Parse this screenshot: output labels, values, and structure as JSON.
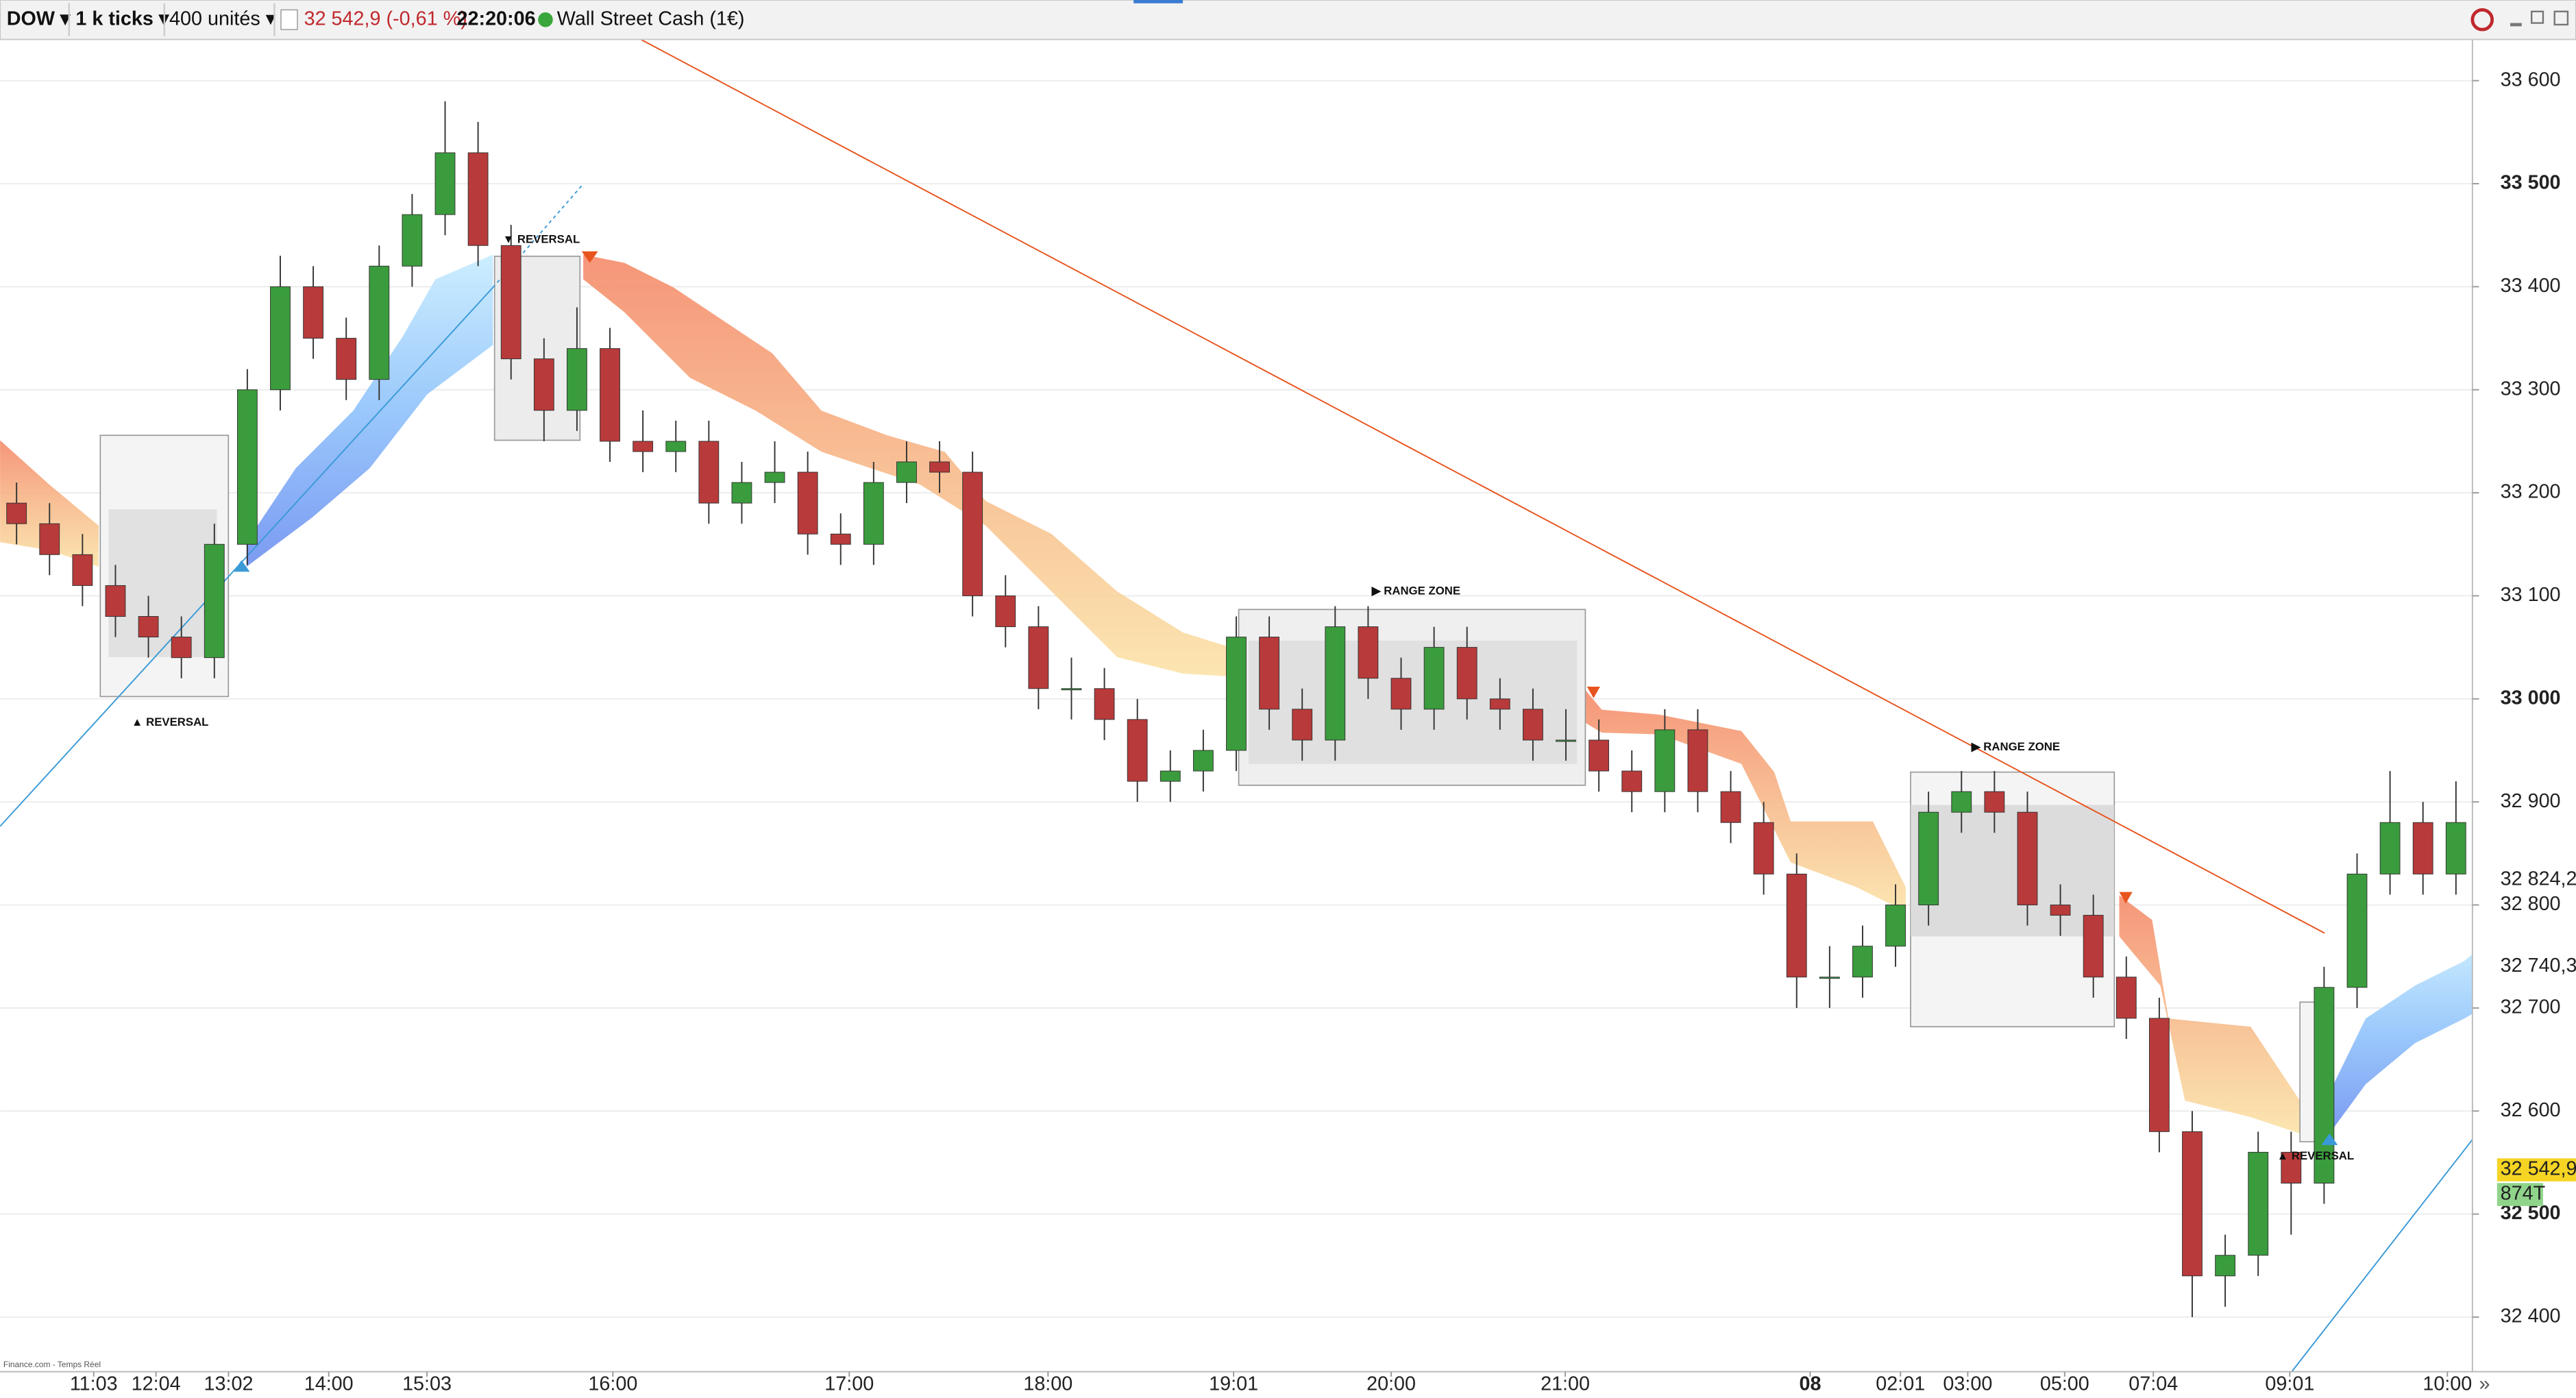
{
  "toolbar": {
    "symbol": "DOW ▾",
    "timeframe": "1 k ticks ▾",
    "units": "400 unités ▾",
    "quote": "32 542,9 (-0,61 %)",
    "time": "22:20:06",
    "instrument": "Wall Street Cash (1€)"
  },
  "footer": {
    "source": "Finance.com - Temps Réel",
    "more": "»"
  },
  "chart_data": {
    "type": "candlestick",
    "up_color": "#3a9c3c",
    "down_color": "#b83a3a",
    "grid": true,
    "annotations": [
      "▼ REVERSAL",
      "▲ REVERSAL",
      "▶ RANGE ZONE",
      "▶ RANGE ZONE",
      "▲ REVERSAL"
    ],
    "xlim": [
      0,
      75
    ],
    "xticks": [
      {
        "value": 2.84,
        "label": "11:03"
      },
      {
        "value": 4.73,
        "label": "12:04"
      },
      {
        "value": 6.93,
        "label": "13:02"
      },
      {
        "value": 9.97,
        "label": "14:00"
      },
      {
        "value": 12.95,
        "label": "15:03"
      },
      {
        "value": 18.59,
        "label": "16:00"
      },
      {
        "value": 25.76,
        "label": "17:00"
      },
      {
        "value": 31.79,
        "label": "18:00"
      },
      {
        "value": 37.42,
        "label": "19:01"
      },
      {
        "value": 42.2,
        "label": "20:00"
      },
      {
        "value": 47.48,
        "label": "21:00"
      },
      {
        "value": 54.91,
        "label": "08"
      },
      {
        "value": 57.65,
        "label": "02:01"
      },
      {
        "value": 59.69,
        "label": "03:00"
      },
      {
        "value": 62.63,
        "label": "05:00"
      },
      {
        "value": 65.32,
        "label": "07:04"
      },
      {
        "value": 69.46,
        "label": "09:01"
      },
      {
        "value": 74.24,
        "label": "10:00"
      }
    ],
    "ylim": [
      32347,
      33640
    ],
    "yticks": [
      {
        "value": 32400,
        "label": "32 400"
      },
      {
        "value": 32500,
        "label": "32 500"
      },
      {
        "value": 32600,
        "label": "32 600"
      },
      {
        "value": 32700,
        "label": "32 700"
      },
      {
        "value": 32800,
        "label": "32 800"
      },
      {
        "value": 32900,
        "label": "32 900"
      },
      {
        "value": 33000,
        "label": "33 000"
      },
      {
        "value": 33100,
        "label": "33 100"
      },
      {
        "value": 33200,
        "label": "33 200"
      },
      {
        "value": 33300,
        "label": "33 300"
      },
      {
        "value": 33400,
        "label": "33 400"
      },
      {
        "value": 33500,
        "label": "33 500"
      },
      {
        "value": 33600,
        "label": "33 600"
      }
    ],
    "price_markers": [
      {
        "value": 32824.2,
        "label": "32 824,2",
        "color": "#e8541e",
        "bg": "#ffffff"
      },
      {
        "value": 32740.3,
        "label": "32 740,3",
        "color": "#999999",
        "bg": "#ffffff"
      },
      {
        "value": 32542.9,
        "label": "32 542,9",
        "color": "#111111",
        "bg": "#f5d423"
      }
    ],
    "volume_label": "874T",
    "open": [
      33190,
      33170,
      33140,
      33110,
      33080,
      33060,
      33040,
      33150,
      33300,
      33400,
      33350,
      33310,
      33420,
      33470,
      33530,
      33440,
      33330,
      33280,
      33340,
      33250,
      33240,
      33250,
      33190,
      33210,
      33220,
      33160,
      33150,
      33210,
      33230,
      33220,
      33100,
      33070,
      33010,
      33010,
      32980,
      32920,
      32930,
      32950,
      33060,
      32990,
      32960,
      33070,
      33020,
      32990,
      33050,
      33000,
      32990,
      32960,
      32960,
      32930,
      32910,
      32970,
      32910,
      32880,
      32830,
      32730,
      32730,
      32760,
      32800,
      32890,
      32910,
      32890,
      32800,
      32790,
      32730,
      32690,
      32580,
      32440,
      32460,
      32560,
      32530,
      32720,
      32830,
      32880,
      32830
    ],
    "high": [
      33210,
      33190,
      33160,
      33130,
      33100,
      33080,
      33170,
      33320,
      33430,
      33420,
      33370,
      33440,
      33490,
      33580,
      33560,
      33460,
      33350,
      33380,
      33360,
      33280,
      33270,
      33270,
      33230,
      33250,
      33240,
      33180,
      33230,
      33250,
      33250,
      33240,
      33120,
      33090,
      33040,
      33030,
      33000,
      32950,
      32970,
      33080,
      33080,
      33010,
      33090,
      33090,
      33040,
      33070,
      33070,
      33020,
      33010,
      32990,
      32980,
      32950,
      32990,
      32990,
      32930,
      32900,
      32850,
      32760,
      32780,
      32820,
      32910,
      32930,
      32930,
      32910,
      32820,
      32810,
      32750,
      32710,
      32600,
      32480,
      32580,
      32580,
      32740,
      32850,
      32930,
      32900,
      32920
    ],
    "low": [
      33150,
      33120,
      33090,
      33060,
      33040,
      33020,
      33020,
      33130,
      33280,
      33330,
      33290,
      33290,
      33400,
      33450,
      33420,
      33310,
      33250,
      33260,
      33230,
      33220,
      33220,
      33170,
      33170,
      33190,
      33140,
      33130,
      33130,
      33190,
      33200,
      33080,
      33050,
      32990,
      32980,
      32960,
      32900,
      32900,
      32910,
      32930,
      32970,
      32940,
      32940,
      33000,
      32970,
      32970,
      32980,
      32970,
      32940,
      32940,
      32910,
      32890,
      32890,
      32890,
      32860,
      32810,
      32700,
      32700,
      32710,
      32740,
      32780,
      32870,
      32870,
      32780,
      32770,
      32710,
      32670,
      32560,
      32400,
      32410,
      32440,
      32480,
      32510,
      32700,
      32810,
      32810,
      32810
    ],
    "close": [
      33170,
      33140,
      33110,
      33080,
      33060,
      33040,
      33150,
      33300,
      33400,
      33350,
      33310,
      33420,
      33470,
      33530,
      33440,
      33330,
      33280,
      33340,
      33250,
      33240,
      33250,
      33190,
      33210,
      33220,
      33160,
      33150,
      33210,
      33230,
      33220,
      33100,
      33070,
      33010,
      33010,
      32980,
      32920,
      32930,
      32950,
      33060,
      32990,
      32960,
      33070,
      33020,
      32990,
      33050,
      33000,
      32990,
      32960,
      32960,
      32930,
      32910,
      32970,
      32910,
      32880,
      32830,
      32730,
      32730,
      32760,
      32800,
      32890,
      32910,
      32890,
      32800,
      32790,
      32730,
      32690,
      32580,
      32440,
      32460,
      32560,
      32530,
      32720,
      32830,
      32880,
      32830,
      32880
    ]
  }
}
